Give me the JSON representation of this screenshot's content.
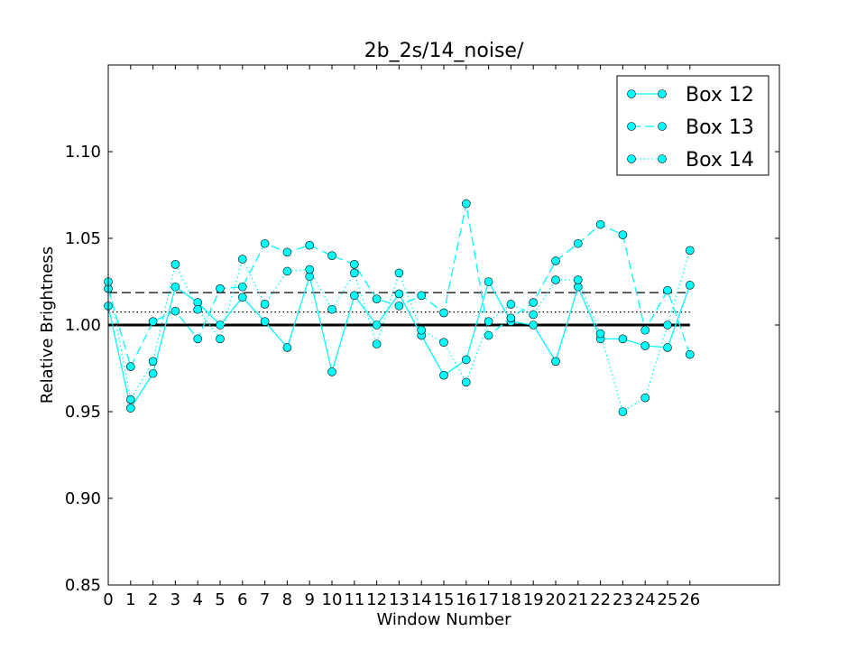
{
  "chart_data": {
    "type": "line",
    "title": "2b_2s/14_noise/",
    "xlabel": "Window Number",
    "ylabel": "Relative Brightness",
    "xlim": [
      0,
      30
    ],
    "ylim": [
      0.85,
      1.15
    ],
    "x_ticks": [
      0,
      1,
      2,
      3,
      4,
      5,
      6,
      7,
      8,
      9,
      10,
      11,
      12,
      13,
      14,
      15,
      16,
      17,
      18,
      19,
      20,
      21,
      22,
      23,
      24,
      25,
      26
    ],
    "y_ticks": [
      0.85,
      0.9,
      0.95,
      1.0,
      1.05,
      1.1
    ],
    "y_tick_labels": [
      "0.85",
      "0.90",
      "0.95",
      "1.00",
      "1.05",
      "1.10"
    ],
    "legend_position": "top-right",
    "marker_color": "#00ffff",
    "x": [
      0,
      1,
      2,
      3,
      4,
      5,
      6,
      7,
      8,
      9,
      10,
      11,
      12,
      13,
      14,
      15,
      16,
      17,
      18,
      19,
      20,
      21,
      22,
      23,
      24,
      25,
      26
    ],
    "series": [
      {
        "name": "Box 12",
        "line_style": "solid",
        "values": [
          1.011,
          0.952,
          0.972,
          1.022,
          1.013,
          1.0,
          1.016,
          1.002,
          0.987,
          1.028,
          0.973,
          1.017,
          1.0,
          1.018,
          0.994,
          0.971,
          0.98,
          1.025,
          1.002,
          1.0,
          0.979,
          1.022,
          0.992,
          0.992,
          0.988,
          0.987,
          1.023
        ]
      },
      {
        "name": "Box 13",
        "line_style": "dashed",
        "values": [
          1.021,
          0.976,
          1.002,
          1.008,
          0.992,
          1.021,
          1.022,
          1.047,
          1.042,
          1.046,
          1.04,
          1.035,
          1.015,
          1.011,
          1.017,
          1.007,
          1.07,
          0.994,
          1.004,
          1.013,
          1.037,
          1.047,
          1.058,
          1.052,
          0.997,
          1.02,
          0.983
        ]
      },
      {
        "name": "Box 14",
        "line_style": "dotted",
        "values": [
          1.025,
          0.957,
          0.979,
          1.035,
          1.009,
          0.992,
          1.038,
          1.012,
          1.031,
          1.032,
          1.009,
          1.03,
          0.989,
          1.03,
          0.997,
          0.99,
          0.967,
          1.002,
          1.012,
          1.006,
          1.026,
          1.026,
          0.995,
          0.95,
          0.958,
          1.0,
          1.043
        ]
      }
    ],
    "reference_lines": [
      {
        "y": 1.0,
        "line_style": "solid-thick",
        "xrange": [
          0,
          26
        ]
      },
      {
        "y": 1.0187,
        "line_style": "dashed",
        "xrange": [
          0,
          26
        ]
      },
      {
        "y": 1.0075,
        "line_style": "dotted",
        "xrange": [
          0,
          26
        ]
      }
    ]
  }
}
